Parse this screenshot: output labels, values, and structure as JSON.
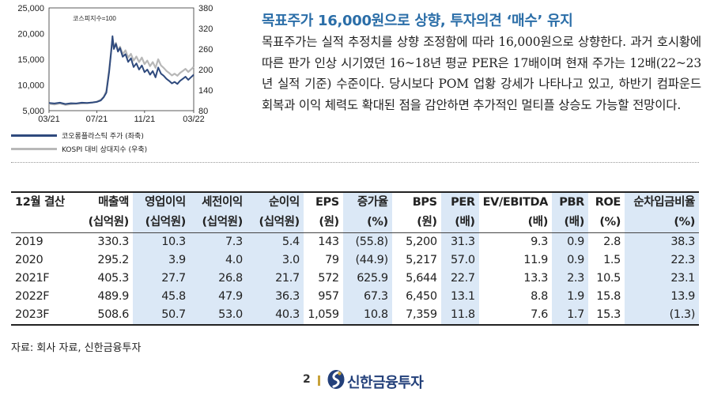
{
  "chart_data": {
    "type": "line",
    "annotation": "코스피지수=100",
    "x_ticks": [
      "03/21",
      "07/21",
      "11/21",
      "03/22"
    ],
    "y_left_ticks": [
      "25,000",
      "20,000",
      "15,000",
      "10,000",
      "5,000"
    ],
    "y_right_ticks": [
      "380",
      "320",
      "260",
      "200",
      "140",
      "80"
    ],
    "ylim_left": [
      5000,
      25000
    ],
    "ylim_right": [
      80,
      380
    ],
    "series": [
      {
        "name": "코오롱플라스틱 주가 (좌축)",
        "axis": "left",
        "color": "#2f4a7d",
        "points": [
          [
            0,
            6500
          ],
          [
            8,
            6400
          ],
          [
            16,
            6550
          ],
          [
            24,
            6300
          ],
          [
            32,
            6450
          ],
          [
            40,
            6400
          ],
          [
            48,
            6550
          ],
          [
            56,
            6500
          ],
          [
            64,
            6600
          ],
          [
            70,
            6700
          ],
          [
            76,
            7000
          ],
          [
            80,
            7600
          ],
          [
            84,
            8500
          ],
          [
            88,
            12500
          ],
          [
            91,
            16500
          ],
          [
            93,
            19500
          ],
          [
            95,
            17000
          ],
          [
            98,
            18000
          ],
          [
            101,
            16500
          ],
          [
            104,
            17200
          ],
          [
            108,
            15500
          ],
          [
            112,
            16000
          ],
          [
            116,
            14500
          ],
          [
            120,
            15200
          ],
          [
            124,
            13500
          ],
          [
            128,
            14200
          ],
          [
            132,
            13000
          ],
          [
            136,
            13800
          ],
          [
            140,
            12500
          ],
          [
            144,
            13000
          ],
          [
            148,
            12000
          ],
          [
            152,
            12700
          ],
          [
            156,
            11500
          ],
          [
            160,
            13400
          ],
          [
            164,
            12200
          ],
          [
            168,
            11800
          ],
          [
            172,
            11200
          ],
          [
            176,
            10800
          ],
          [
            180,
            10300
          ],
          [
            184,
            10600
          ],
          [
            188,
            10200
          ],
          [
            192,
            10800
          ],
          [
            196,
            11200
          ],
          [
            200,
            11600
          ],
          [
            204,
            11000
          ],
          [
            208,
            11500
          ],
          [
            212,
            12000
          ]
        ]
      },
      {
        "name": "KOSPI 대비 상대지수 (우축)",
        "axis": "right",
        "color": "#b8b8b8",
        "points": [
          [
            0,
            100
          ],
          [
            8,
            98
          ],
          [
            16,
            101
          ],
          [
            24,
            97
          ],
          [
            32,
            99
          ],
          [
            40,
            100
          ],
          [
            48,
            101
          ],
          [
            56,
            102
          ],
          [
            64,
            104
          ],
          [
            70,
            106
          ],
          [
            76,
            112
          ],
          [
            80,
            120
          ],
          [
            84,
            138
          ],
          [
            88,
            200
          ],
          [
            91,
            255
          ],
          [
            93,
            290
          ],
          [
            95,
            262
          ],
          [
            98,
            278
          ],
          [
            101,
            255
          ],
          [
            104,
            267
          ],
          [
            108,
            245
          ],
          [
            112,
            256
          ],
          [
            116,
            235
          ],
          [
            120,
            246
          ],
          [
            124,
            226
          ],
          [
            128,
            238
          ],
          [
            132,
            222
          ],
          [
            136,
            235
          ],
          [
            140,
            216
          ],
          [
            144,
            226
          ],
          [
            148,
            210
          ],
          [
            152,
            222
          ],
          [
            156,
            205
          ],
          [
            160,
            230
          ],
          [
            164,
            212
          ],
          [
            168,
            205
          ],
          [
            172,
            196
          ],
          [
            176,
            190
          ],
          [
            180,
            183
          ],
          [
            184,
            188
          ],
          [
            188,
            182
          ],
          [
            192,
            190
          ],
          [
            196,
            196
          ],
          [
            200,
            202
          ],
          [
            204,
            193
          ],
          [
            208,
            200
          ],
          [
            212,
            208
          ]
        ]
      }
    ]
  },
  "headline": "목표주가 16,000원으로 상향, 투자의견 ‘매수’ 유지",
  "paragraph": "목표주가는 실적 추정치를 상향 조정함에 따라 16,000원으로 상향한다. 과거 호시황에 따른 판가 인상 시기였던 16~18년 평균 PER은 17배이며 현재 주가는 12배(22~23년 실적 기준) 수준이다. 당시보다 POM 업황 강세가 나타나고 있고, 하반기 컴파운드 회복과 이익 체력도 확대된 점을 감안하면 추가적인 멀티플 상승도 가능할 전망이다.",
  "table": {
    "header_top": [
      "12월 결산",
      "매출액",
      "영업이익",
      "세전이익",
      "순이익",
      "EPS",
      "증가율",
      "BPS",
      "PER",
      "EV/EBITDA",
      "PBR",
      "ROE",
      "순차입금비율"
    ],
    "header_bottom": [
      "",
      "(십억원)",
      "(십억원)",
      "(십억원)",
      "(십억원)",
      "(원)",
      "(%)",
      "(원)",
      "(배)",
      "(배)",
      "(배)",
      "(%)",
      "(%)"
    ],
    "rows": [
      [
        "2019",
        "330.3",
        "10.3",
        "7.3",
        "5.4",
        "143",
        "(55.8)",
        "5,200",
        "31.3",
        "9.3",
        "0.9",
        "2.8",
        "38.3"
      ],
      [
        "2020",
        "295.2",
        "3.9",
        "4.0",
        "3.0",
        "79",
        "(44.9)",
        "5,217",
        "57.0",
        "11.9",
        "0.9",
        "1.5",
        "22.3"
      ],
      [
        "2021F",
        "405.3",
        "27.7",
        "26.8",
        "21.7",
        "572",
        "625.9",
        "5,644",
        "22.7",
        "13.3",
        "2.3",
        "10.5",
        "23.1"
      ],
      [
        "2022F",
        "489.9",
        "45.8",
        "47.9",
        "36.3",
        "957",
        "67.3",
        "6,450",
        "13.1",
        "8.8",
        "1.9",
        "15.8",
        "13.9"
      ],
      [
        "2023F",
        "508.6",
        "50.7",
        "53.0",
        "40.3",
        "1,059",
        "10.8",
        "7,359",
        "11.8",
        "7.6",
        "1.7",
        "15.3",
        "(1.3)"
      ]
    ]
  },
  "source": "자료: 회사 자료, 신한금융투자",
  "footer": {
    "page_number": "2",
    "brand": "신한금융투자"
  }
}
